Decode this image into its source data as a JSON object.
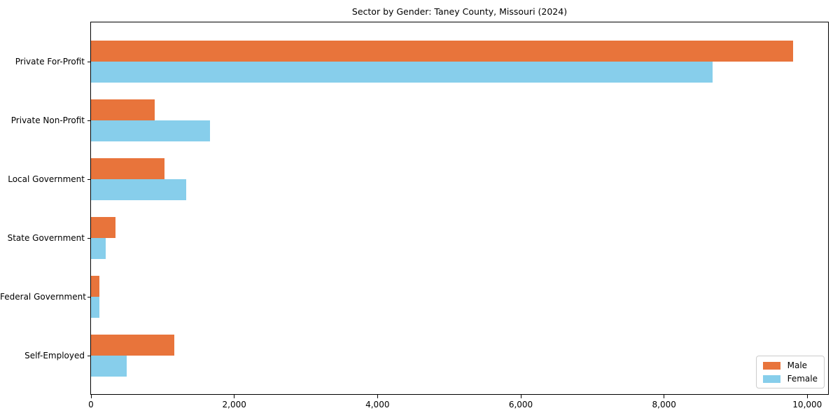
{
  "chart_data": {
    "type": "bar",
    "orientation": "horizontal",
    "title": "Sector by Gender: Taney County, Missouri (2024)",
    "categories": [
      "Private For-Profit",
      "Private Non-Profit",
      "Local Government",
      "State Government",
      "Federal Government",
      "Self-Employed"
    ],
    "series": [
      {
        "name": "Male",
        "color": "#e8743b",
        "values": [
          9800,
          890,
          1030,
          340,
          120,
          1165
        ]
      },
      {
        "name": "Female",
        "color": "#87ceeb",
        "values": [
          8680,
          1660,
          1330,
          205,
          115,
          500
        ]
      }
    ],
    "xlabel": "",
    "ylabel": "",
    "xlim": [
      0,
      10290
    ],
    "xticks": [
      0,
      2000,
      4000,
      6000,
      8000,
      10000
    ],
    "xtick_labels": [
      "0",
      "2,000",
      "4,000",
      "6,000",
      "8,000",
      "10,000"
    ],
    "grid": false,
    "legend_position": "lower right",
    "background_color": "#ffffff",
    "spine_color": "#000000"
  }
}
